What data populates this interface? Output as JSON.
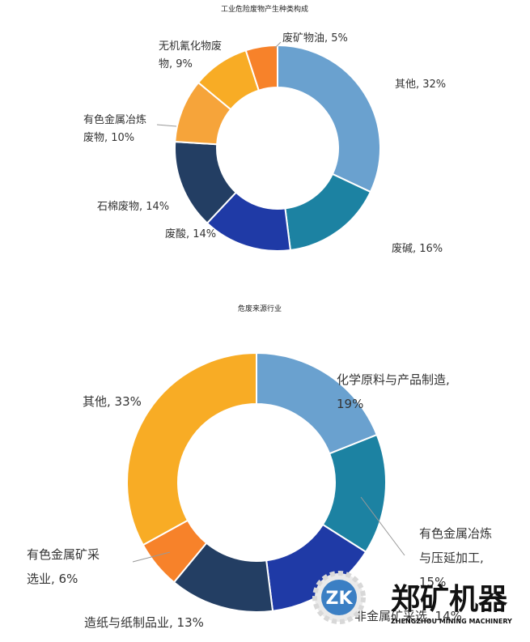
{
  "chart_data": [
    {
      "type": "pie",
      "title": "工业危险废物产生种类构成",
      "series": [
        {
          "name": "其他",
          "display": "其他, 32%",
          "value": 32,
          "color": "#6aa1cf"
        },
        {
          "name": "废碱",
          "display": "废碱, 16%",
          "value": 16,
          "color": "#1c82a2"
        },
        {
          "name": "废酸",
          "display": "废酸, 14%",
          "value": 14,
          "color": "#1f3aa6"
        },
        {
          "name": "石棉废物",
          "display": "石棉废物, 14%",
          "value": 14,
          "color": "#233e63"
        },
        {
          "name": "有色金属冶炼废物",
          "display": [
            "有色金属冶炼",
            "废物, 10%"
          ],
          "value": 10,
          "color": "#f6a43a"
        },
        {
          "name": "无机氰化物废物",
          "display": [
            "无机氰化物废",
            "物, 9%"
          ],
          "value": 9,
          "color": "#f8ac25"
        },
        {
          "name": "废矿物油",
          "display": "废矿物油, 5%",
          "value": 5,
          "color": "#f7822a"
        }
      ]
    },
    {
      "type": "pie",
      "title": "危废来源行业",
      "series": [
        {
          "name": "化学原料与产品制造",
          "display": [
            "化学原料与产品制造,",
            "19%"
          ],
          "value": 19,
          "color": "#6aa1cf"
        },
        {
          "name": "有色金属冶炼与压延加工",
          "display": [
            "有色金属冶炼",
            "与压延加工,",
            "15%"
          ],
          "value": 15,
          "color": "#1c82a2"
        },
        {
          "name": "非金属矿采选业",
          "display": "非金属矿采选, 14%",
          "value": 14,
          "color": "#1f3aa6"
        },
        {
          "name": "造纸与纸制品业",
          "display": "造纸与纸制品业, 13%",
          "value": 13,
          "color": "#233e63"
        },
        {
          "name": "有色金属矿采选业",
          "display": [
            "有色金属矿采",
            "选业, 6%"
          ],
          "value": 6,
          "color": "#f7822a"
        },
        {
          "name": "其他",
          "display": "其他, 33%",
          "value": 33,
          "color": "#f8ac25"
        }
      ]
    }
  ],
  "watermark": {
    "logo_letters": "ZK",
    "brand": "郑矿机器",
    "brand_en": "ZHENGZHOU MINING MACHINERY"
  }
}
